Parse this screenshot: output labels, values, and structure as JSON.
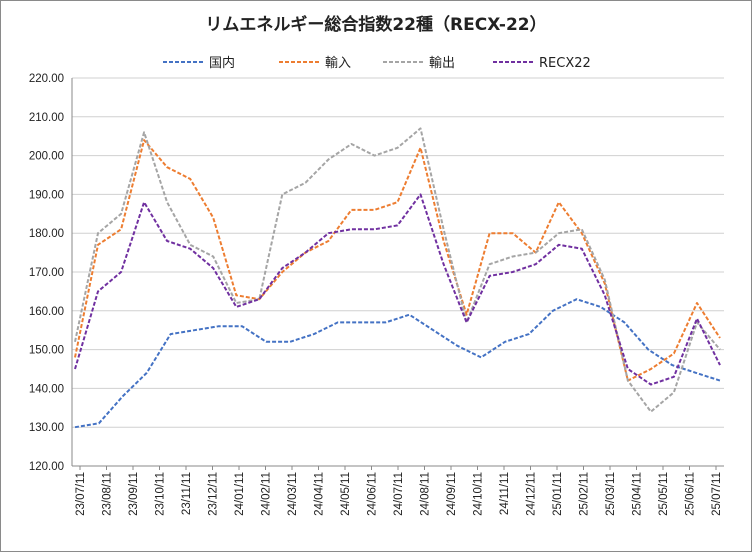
{
  "chart_data": {
    "type": "line",
    "title": "リムエネルギー総合指数22種（RECX-22）",
    "ylim": [
      120,
      220
    ],
    "yticks": [
      "220.00",
      "210.00",
      "200.00",
      "190.00",
      "180.00",
      "170.00",
      "160.00",
      "150.00",
      "140.00",
      "130.00",
      "120.00"
    ],
    "xticks": [
      "23/07/11",
      "23/08/11",
      "23/09/11",
      "23/10/11",
      "23/11/11",
      "23/12/11",
      "24/01/11",
      "24/02/11",
      "24/03/11",
      "24/04/11",
      "24/05/11",
      "24/06/11",
      "24/07/11",
      "24/08/11",
      "24/09/11",
      "24/10/11",
      "24/11/11",
      "24/12/11",
      "25/01/11",
      "25/02/11",
      "25/03/11",
      "25/04/11",
      "25/05/11",
      "25/06/11",
      "25/07/11"
    ],
    "grid": "horizontal",
    "legend_position": "top",
    "series": [
      {
        "name": "国内",
        "color": "#4472c4",
        "values": [
          130,
          131,
          138,
          144,
          154,
          155,
          156,
          156,
          152,
          152,
          154,
          157,
          157,
          157,
          159,
          155,
          151,
          148,
          152,
          154,
          160,
          163,
          161,
          157,
          150,
          146,
          144,
          142
        ]
      },
      {
        "name": "輸入",
        "color": "#ed7d31",
        "values": [
          148,
          177,
          181,
          204,
          197,
          194,
          184,
          164,
          163,
          170,
          175,
          178,
          186,
          186,
          188,
          202,
          178,
          159,
          180,
          180,
          175,
          188,
          180,
          167,
          142,
          145,
          149,
          162,
          153
        ]
      },
      {
        "name": "輸出",
        "color": "#a5a5a5",
        "values": [
          152,
          180,
          185,
          206,
          188,
          177,
          174,
          162,
          163,
          190,
          193,
          199,
          203,
          200,
          202,
          207,
          181,
          157,
          172,
          174,
          175,
          180,
          181,
          168,
          142,
          134,
          139,
          157,
          150
        ]
      },
      {
        "name": "RECX22",
        "color": "#7030a0",
        "values": [
          145,
          165,
          170,
          188,
          178,
          176,
          171,
          161,
          163,
          171,
          175,
          180,
          181,
          181,
          182,
          190,
          172,
          157,
          169,
          170,
          172,
          177,
          176,
          164,
          145,
          141,
          143,
          158,
          146
        ]
      }
    ]
  }
}
